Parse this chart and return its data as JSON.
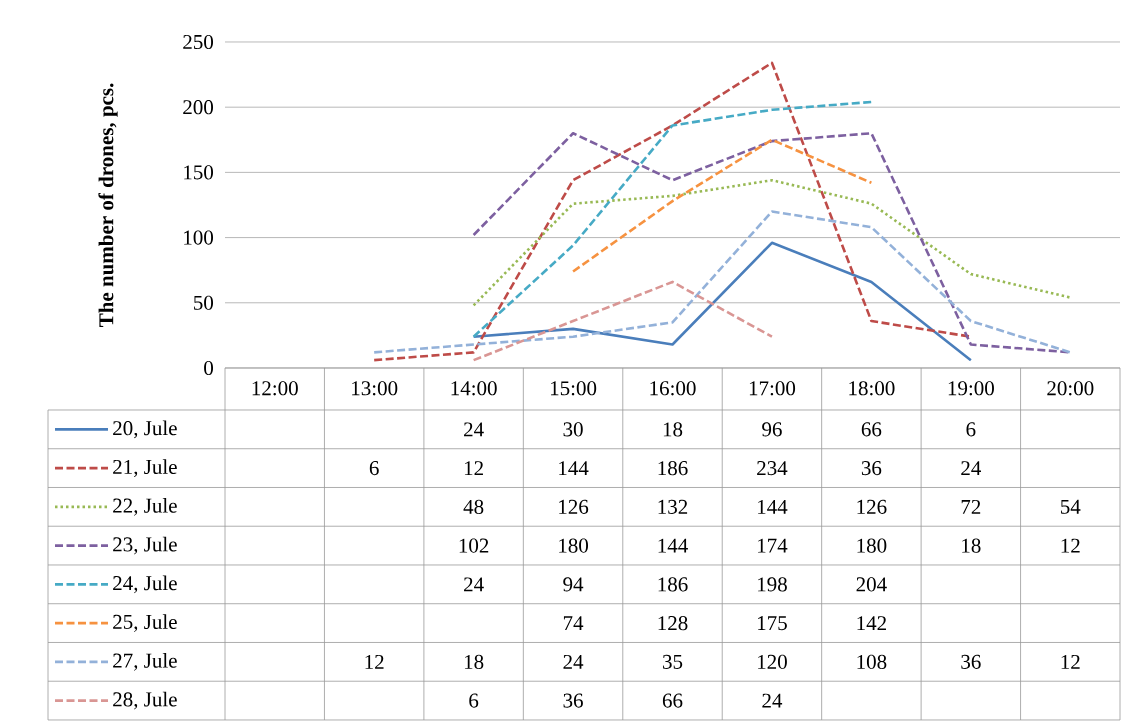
{
  "chart_data": {
    "type": "line",
    "ylabel": "The number of drones, pcs.",
    "categories": [
      "12:00",
      "13:00",
      "14:00",
      "15:00",
      "16:00",
      "17:00",
      "18:00",
      "19:00",
      "20:00"
    ],
    "ylim": [
      0,
      250
    ],
    "yticks": [
      0,
      50,
      100,
      150,
      200,
      250
    ],
    "grid": "y",
    "legend": "bottom",
    "data_labels": true,
    "marker": "none",
    "series": [
      {
        "name": "20, Jule",
        "color": "#4a7ebb",
        "line_style": "solid",
        "values": [
          null,
          null,
          24,
          30,
          18,
          96,
          66,
          6,
          null
        ]
      },
      {
        "name": "21, Jule",
        "color": "#be4b48",
        "line_style": "dashed",
        "values": [
          null,
          6,
          12,
          144,
          186,
          234,
          36,
          24,
          null
        ]
      },
      {
        "name": "22, Jule",
        "color": "#98b954",
        "line_style": "dotted",
        "values": [
          null,
          null,
          48,
          126,
          132,
          144,
          126,
          72,
          54
        ]
      },
      {
        "name": "23, Jule",
        "color": "#7d60a0",
        "line_style": "dashed",
        "values": [
          null,
          null,
          102,
          180,
          144,
          174,
          180,
          18,
          12
        ]
      },
      {
        "name": "24, Jule",
        "color": "#46aac5",
        "line_style": "dashed",
        "values": [
          null,
          null,
          24,
          94,
          186,
          198,
          204,
          null,
          null
        ]
      },
      {
        "name": "25, Jule",
        "color": "#f69240",
        "line_style": "dashed",
        "values": [
          null,
          null,
          null,
          74,
          128,
          175,
          142,
          null,
          null
        ]
      },
      {
        "name": "27, Jule",
        "color": "#93b1d9",
        "line_style": "dashed",
        "values": [
          null,
          12,
          18,
          24,
          35,
          120,
          108,
          36,
          12
        ]
      },
      {
        "name": "28, Jule",
        "color": "#d99694",
        "line_style": "dashed",
        "values": [
          null,
          null,
          6,
          36,
          66,
          24,
          null,
          null,
          null
        ]
      }
    ]
  }
}
